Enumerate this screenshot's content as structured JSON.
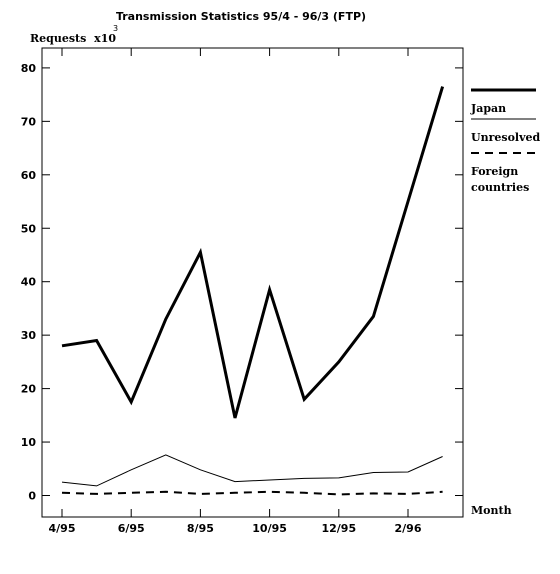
{
  "chart_data": {
    "type": "line",
    "title": "Transmission Statistics 95/4 - 96/3 (FTP)",
    "ylabel": "Requests",
    "ylabel_multiplier": "x10",
    "ylabel_exponent": "3",
    "xlabel": "Month",
    "x": [
      "95/4",
      "95/5",
      "95/6",
      "95/7",
      "95/8",
      "95/9",
      "95/10",
      "95/11",
      "95/12",
      "96/1",
      "96/2",
      "96/3"
    ],
    "x_tick_labels": [
      "4/95",
      "6/95",
      "8/95",
      "10/95",
      "12/95",
      "2/96"
    ],
    "x_tick_positions": [
      0,
      2,
      4,
      6,
      8,
      10
    ],
    "ylim": [
      -4,
      85
    ],
    "y_ticks": [
      0,
      10,
      20,
      30,
      40,
      50,
      60,
      70,
      80
    ],
    "series": [
      {
        "name": "Japan",
        "style": "thick",
        "values": [
          28,
          29,
          17.5,
          33,
          45.5,
          14.5,
          38.5,
          18,
          25,
          33.5,
          55,
          76.5
        ]
      },
      {
        "name": "Unresolved",
        "style": "thin",
        "values": [
          2.5,
          1.8,
          4.8,
          7.6,
          4.8,
          2.6,
          2.9,
          3.2,
          3.3,
          4.3,
          4.4,
          7.3
        ]
      },
      {
        "name": "Foreign countries",
        "style": "dashed",
        "values": [
          0.5,
          0.3,
          0.5,
          0.7,
          0.3,
          0.5,
          0.7,
          0.5,
          0.2,
          0.4,
          0.3,
          0.7
        ]
      }
    ],
    "legend": [
      {
        "lines": [
          "Japan"
        ]
      },
      {
        "lines": [
          "Unresolved"
        ]
      },
      {
        "lines": [
          "Foreign",
          "countries"
        ]
      }
    ],
    "legend_placement": "right",
    "grid": false
  }
}
